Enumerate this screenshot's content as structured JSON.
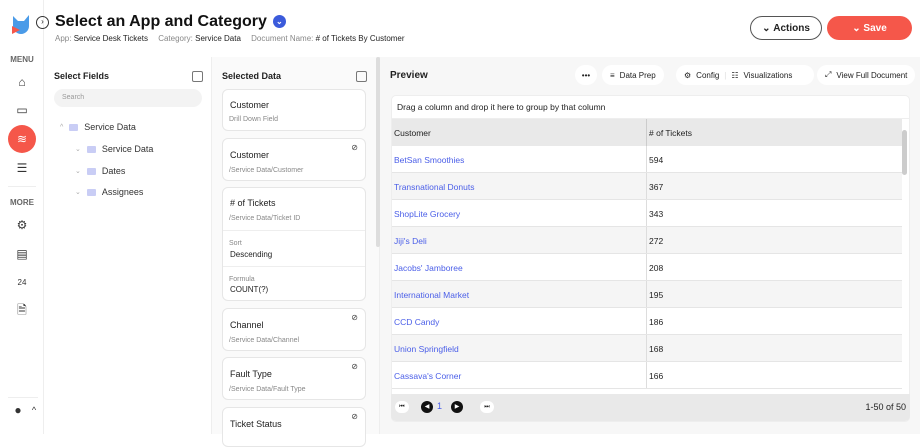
{
  "sidebar": {
    "menu_label": "MENU",
    "more_label": "MORE",
    "active_color": "#f5574a",
    "items": [
      "home-icon",
      "folder-icon",
      "layers-icon",
      "server-icon"
    ],
    "more_items": [
      "gear-icon",
      "calendar-icon",
      "24-hour-icon",
      "document-icon"
    ]
  },
  "header": {
    "title": "Select an App and Category",
    "app_label": "App:",
    "app": "Service Desk Tickets",
    "category_label": "Category:",
    "category": "Service Data",
    "docname_label": "Document Name:",
    "docname": "# of Tickets By Customer",
    "actions": "Actions",
    "save": "Save"
  },
  "fields": {
    "title": "Select Fields",
    "search_placeholder": "Search",
    "tree": [
      {
        "label": "Service Data"
      },
      {
        "label": "Service Data"
      },
      {
        "label": "Dates"
      },
      {
        "label": "Assignees"
      }
    ]
  },
  "selected": {
    "title": "Selected Data",
    "cards": [
      {
        "title": "Customer",
        "sub": "Drill Down Field"
      },
      {
        "title": "Customer",
        "sub": "/Service Data/Customer"
      },
      {
        "title": "# of Tickets",
        "sub": "/Service Data/Ticket ID",
        "sort_label": "Sort",
        "sort": "Descending",
        "formula_label": "Formula",
        "formula": "COUNT(?)"
      },
      {
        "title": "Channel",
        "sub": "/Service Data/Channel"
      },
      {
        "title": "Fault Type",
        "sub": "/Service Data/Fault Type"
      },
      {
        "title": "Ticket Status"
      }
    ]
  },
  "preview": {
    "title": "Preview",
    "more": "•••",
    "data_prep": "Data Prep",
    "config": "Config",
    "visualizations": "Visualizations",
    "view_full": "View Full Document",
    "group_hint": "Drag a column and drop it here to group by that column",
    "columns": [
      "Customer",
      "# of Tickets"
    ],
    "rows": [
      [
        "BetSan Smoothies",
        "594"
      ],
      [
        "Transnational Donuts",
        "367"
      ],
      [
        "ShopLite Grocery",
        "343"
      ],
      [
        "Jiji's Deli",
        "272"
      ],
      [
        "Jacobs' Jamboree",
        "208"
      ],
      [
        "International Market",
        "195"
      ],
      [
        "CCD Candy",
        "186"
      ],
      [
        "Union Springfield",
        "168"
      ],
      [
        "Cassava's Corner",
        "166"
      ]
    ],
    "page": "1",
    "range": "1-50 of 50"
  }
}
